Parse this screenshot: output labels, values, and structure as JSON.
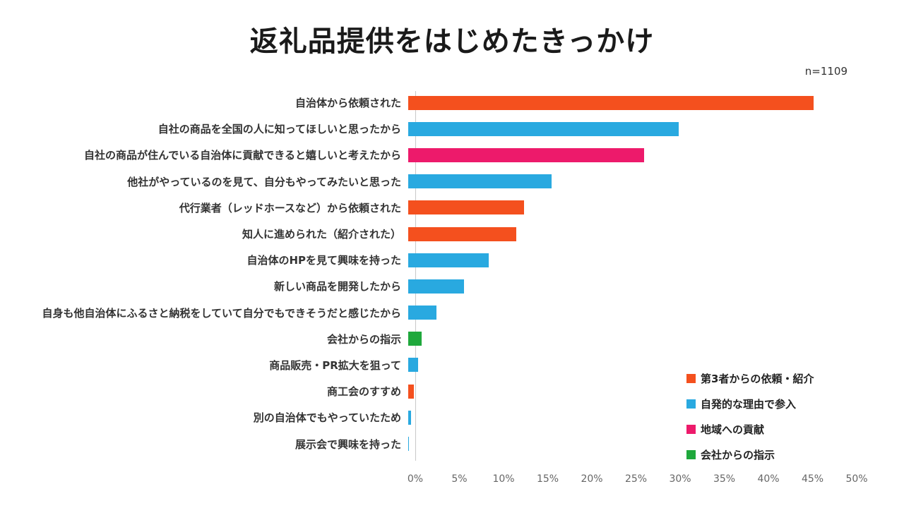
{
  "title": "返礼品提供をはじめたきっかけ",
  "n_label": "n=1109",
  "colors": {
    "orange": "#F4501E",
    "blue": "#29A9E0",
    "pink": "#ED1A6B",
    "green": "#1FA83C",
    "axis_text": "#666666",
    "label_text": "#333333"
  },
  "chart_data": {
    "type": "bar",
    "orientation": "horizontal",
    "title": "返礼品提供をはじめたきっかけ",
    "subtitle": "n=1109",
    "xlabel": "",
    "ylabel": "",
    "xlim": [
      0,
      50
    ],
    "grid": false,
    "legend_position": "bottom-right",
    "categories": [
      "自治体から依頼された",
      "自社の商品を全国の人に知ってほしいと思ったから",
      "自社の商品が住んでいる自治体に貢献できると嬉しいと考えたから",
      "他社がやっているのを見て、自分もやってみたいと思った",
      "代行業者（レッドホースなど）から依頼された",
      "知人に進められた（紹介された）",
      "自治体のHPを見て興味を持った",
      "新しい商品を開発したから",
      "自身も他自治体にふるさと納税をしていて自分でもできそうだと感じたから",
      "会社からの指示",
      "商品販売・PR拡大を狙って",
      "商工会のすすめ",
      "別の自治体でもやっていたため",
      "展示会で興味を持った"
    ],
    "values": [
      45.9,
      30.6,
      26.7,
      16.2,
      13.1,
      12.2,
      9.1,
      6.3,
      3.2,
      1.5,
      1.1,
      0.6,
      0.3,
      0.1
    ],
    "bar_colors": [
      "orange",
      "blue",
      "pink",
      "blue",
      "orange",
      "orange",
      "blue",
      "blue",
      "blue",
      "green",
      "blue",
      "orange",
      "blue",
      "blue"
    ],
    "x_ticks": [
      "0%",
      "5%",
      "10%",
      "15%",
      "20%",
      "25%",
      "30%",
      "35%",
      "40%",
      "45%",
      "50%"
    ],
    "legend": [
      {
        "label": "第3者からの依頼・紹介",
        "color": "orange"
      },
      {
        "label": "自発的な理由で参入",
        "color": "blue"
      },
      {
        "label": "地域への貢献",
        "color": "pink"
      },
      {
        "label": "会社からの指示",
        "color": "green"
      }
    ]
  }
}
